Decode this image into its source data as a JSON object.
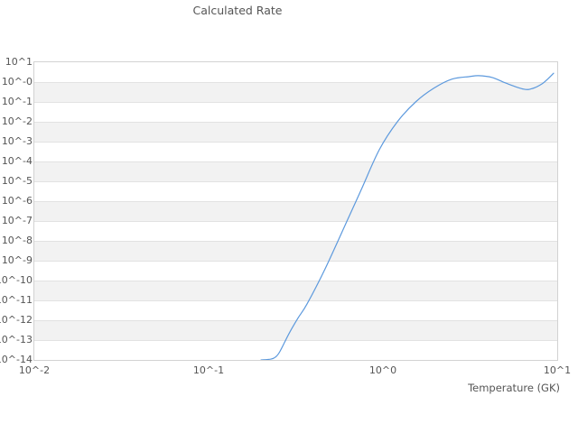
{
  "chart_data": {
    "type": "line",
    "title": "Calculated Rate",
    "xlabel": "Temperature (GK)",
    "ylabel": "",
    "x_scale": "log",
    "y_scale": "log",
    "xlim": [
      0.01,
      10
    ],
    "ylim": [
      1e-14,
      10
    ],
    "x_tick_labels": [
      "10^-2",
      "10^-1",
      "10^0",
      "10^1"
    ],
    "y_tick_labels": [
      "10^1",
      "10^-0",
      "10^-1",
      "10^-2",
      "10^-3",
      "10^-4",
      "10^-5",
      "10^-6",
      "10^-7",
      "10^-8",
      "10^-9",
      "10^-10",
      "10^-11",
      "10^-12",
      "10^-13",
      "10^-14"
    ],
    "grid": "horizontal-gridlines-with-alternating-bands",
    "legend": "none",
    "series": [
      {
        "name": "calculated-rate",
        "color": "#5c99dd",
        "x": [
          0.2,
          0.228,
          0.242,
          0.256,
          0.289,
          0.326,
          0.367,
          0.466,
          0.628,
          0.752,
          0.953,
          1.21,
          1.54,
          1.95,
          2.48,
          3.14,
          3.54,
          4.24,
          5.07,
          6.43,
          7.24,
          8.17,
          8.87,
          9.53
        ],
        "y": [
          1e-14,
          1.1e-14,
          1.4e-14,
          2.6e-14,
          2.1e-13,
          1.3e-12,
          6.6e-12,
          3.9e-10,
          1.2e-07,
          3.9e-06,
          0.00039,
          0.01,
          0.1,
          0.48,
          1.4,
          1.9,
          2.1,
          1.7,
          0.89,
          0.44,
          0.48,
          0.81,
          1.5,
          2.8
        ]
      }
    ],
    "style": {
      "band_color": "#f2f2f2",
      "band_alt_color": "#ffffff",
      "gridline_color": "#e2e2e2",
      "border_color": "#d2d2d2",
      "text_color": "#555555",
      "background_color": "#ffffff"
    }
  }
}
